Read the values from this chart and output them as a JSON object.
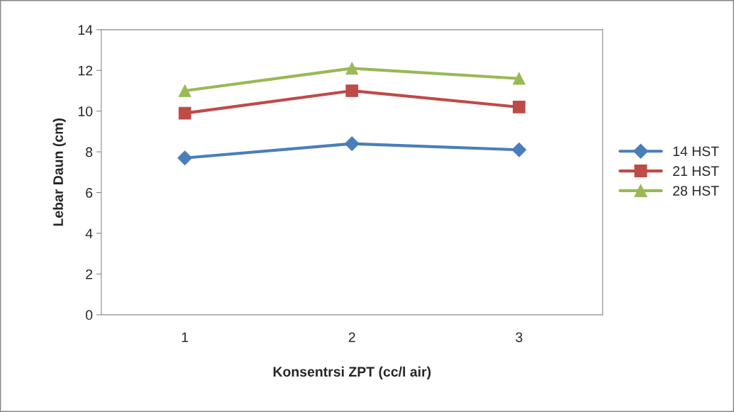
{
  "chart_data": {
    "type": "line",
    "xlabel": "Konsentrsi ZPT (cc/l air)",
    "ylabel": "Lebar Daun (cm)",
    "categories": [
      "1",
      "2",
      "3"
    ],
    "series": [
      {
        "name": "14 HST",
        "color": "#4a7ebb",
        "marker": "diamond",
        "values": [
          7.7,
          8.4,
          8.1
        ]
      },
      {
        "name": "21 HST",
        "color": "#be4b48",
        "marker": "square",
        "values": [
          9.9,
          11.0,
          10.2
        ]
      },
      {
        "name": "28 HST",
        "color": "#98b954",
        "marker": "triangle",
        "values": [
          11.0,
          12.1,
          11.6
        ]
      }
    ],
    "ylim": [
      0,
      14
    ],
    "yticks": [
      0,
      2,
      4,
      6,
      8,
      10,
      12,
      14
    ],
    "grid": false,
    "legend": "right",
    "line_style": "solid"
  }
}
